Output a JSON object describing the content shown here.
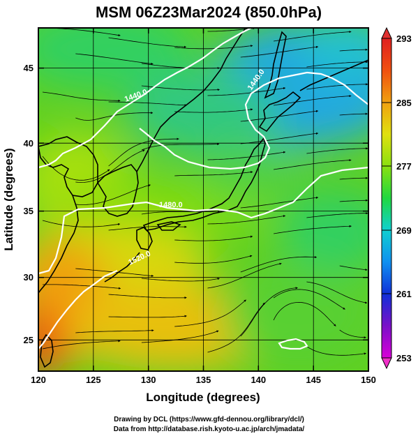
{
  "title": "MSM 06Z23Mar2024 (850.0hPa)",
  "xlabel": "Longitude (degrees)",
  "ylabel": "Latitude  (degrees)",
  "x_ticks": [
    "120",
    "125",
    "130",
    "135",
    "140",
    "145",
    "150"
  ],
  "y_ticks": [
    "25",
    "30",
    "35",
    "40",
    "45"
  ],
  "colorbar_ticks": [
    "293",
    "285",
    "277",
    "269",
    "261",
    "253"
  ],
  "contour_labels": [
    "1480.0",
    "1440.0",
    "1440.0",
    "1520.0"
  ],
  "credits": [
    "Drawing by DCL (https://www.gfd-dennou.org/library/dcl/)",
    "Data from http://database.rish.kyoto-u.ac.jp/arch/jmadata/"
  ],
  "colors": {
    "frame": "#000000",
    "contour": "#ffffff",
    "streamline": "#000000",
    "grid": "#000000"
  },
  "map_data": {
    "xlim": [
      120,
      150
    ],
    "ylim": [
      22.5,
      47.5
    ],
    "colorbar_range": [
      253,
      293
    ],
    "colorbar_scale": [
      "#d800d8",
      "#7a10c8",
      "#1030d8",
      "#1090f0",
      "#10d0d0",
      "#20d840",
      "#8ae010",
      "#e0e010",
      "#f0a010",
      "#f05010",
      "#e02020"
    ],
    "temperature_field_K": [
      {
        "lon": 121,
        "lat": 46,
        "value": 274
      },
      {
        "lon": 130,
        "lat": 46,
        "value": 276
      },
      {
        "lon": 143,
        "lat": 46,
        "value": 270
      },
      {
        "lon": 148,
        "lat": 44,
        "value": 269
      },
      {
        "lon": 135,
        "lat": 41,
        "value": 274
      },
      {
        "lon": 123,
        "lat": 37,
        "value": 279
      },
      {
        "lon": 135,
        "lat": 35,
        "value": 280
      },
      {
        "lon": 122,
        "lat": 28,
        "value": 286
      },
      {
        "lon": 122,
        "lat": 24,
        "value": 288
      },
      {
        "lon": 130,
        "lat": 27,
        "value": 284
      },
      {
        "lon": 143,
        "lat": 27,
        "value": 278
      },
      {
        "lon": 148,
        "lat": 32,
        "value": 277
      }
    ]
  }
}
